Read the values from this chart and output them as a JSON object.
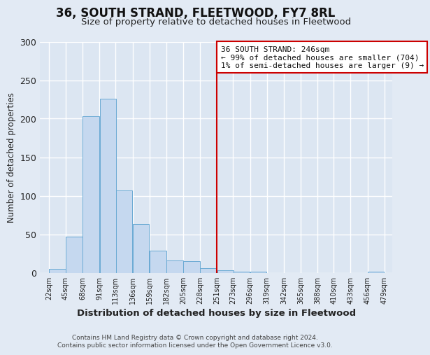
{
  "title": "36, SOUTH STRAND, FLEETWOOD, FY7 8RL",
  "subtitle": "Size of property relative to detached houses in Fleetwood",
  "xlabel": "Distribution of detached houses by size in Fleetwood",
  "ylabel": "Number of detached properties",
  "bar_color": "#c5d8ef",
  "bar_edge_color": "#6aaad4",
  "background_color": "#e2eaf4",
  "plot_background": "#dce6f2",
  "grid_color": "#ffffff",
  "bins_left": [
    22,
    45,
    68,
    91,
    113,
    136,
    159,
    182,
    205,
    228,
    251,
    273,
    296,
    319,
    342,
    365,
    388,
    410,
    433,
    456
  ],
  "bin_width": 23,
  "bar_heights": [
    5,
    47,
    203,
    226,
    107,
    63,
    29,
    16,
    15,
    6,
    3,
    1,
    1,
    0,
    0,
    0,
    0,
    0,
    0,
    1
  ],
  "tick_labels": [
    "22sqm",
    "45sqm",
    "68sqm",
    "91sqm",
    "113sqm",
    "136sqm",
    "159sqm",
    "182sqm",
    "205sqm",
    "228sqm",
    "251sqm",
    "273sqm",
    "296sqm",
    "319sqm",
    "342sqm",
    "365sqm",
    "388sqm",
    "410sqm",
    "433sqm",
    "456sqm",
    "479sqm"
  ],
  "tick_positions": [
    22,
    45,
    68,
    91,
    113,
    136,
    159,
    182,
    205,
    228,
    251,
    273,
    296,
    319,
    342,
    365,
    388,
    410,
    433,
    456,
    479
  ],
  "ylim": [
    0,
    300
  ],
  "yticks": [
    0,
    50,
    100,
    150,
    200,
    250,
    300
  ],
  "xlim": [
    10,
    490
  ],
  "property_line_x": 251,
  "annotation_title": "36 SOUTH STRAND: 246sqm",
  "annotation_line1": "← 99% of detached houses are smaller (704)",
  "annotation_line2": "1% of semi-detached houses are larger (9) →",
  "annotation_box_facecolor": "#ffffff",
  "annotation_box_edgecolor": "#cc0000",
  "property_line_color": "#cc0000",
  "title_fontsize": 12,
  "subtitle_fontsize": 9.5,
  "footer_line1": "Contains HM Land Registry data © Crown copyright and database right 2024.",
  "footer_line2": "Contains public sector information licensed under the Open Government Licence v3.0."
}
